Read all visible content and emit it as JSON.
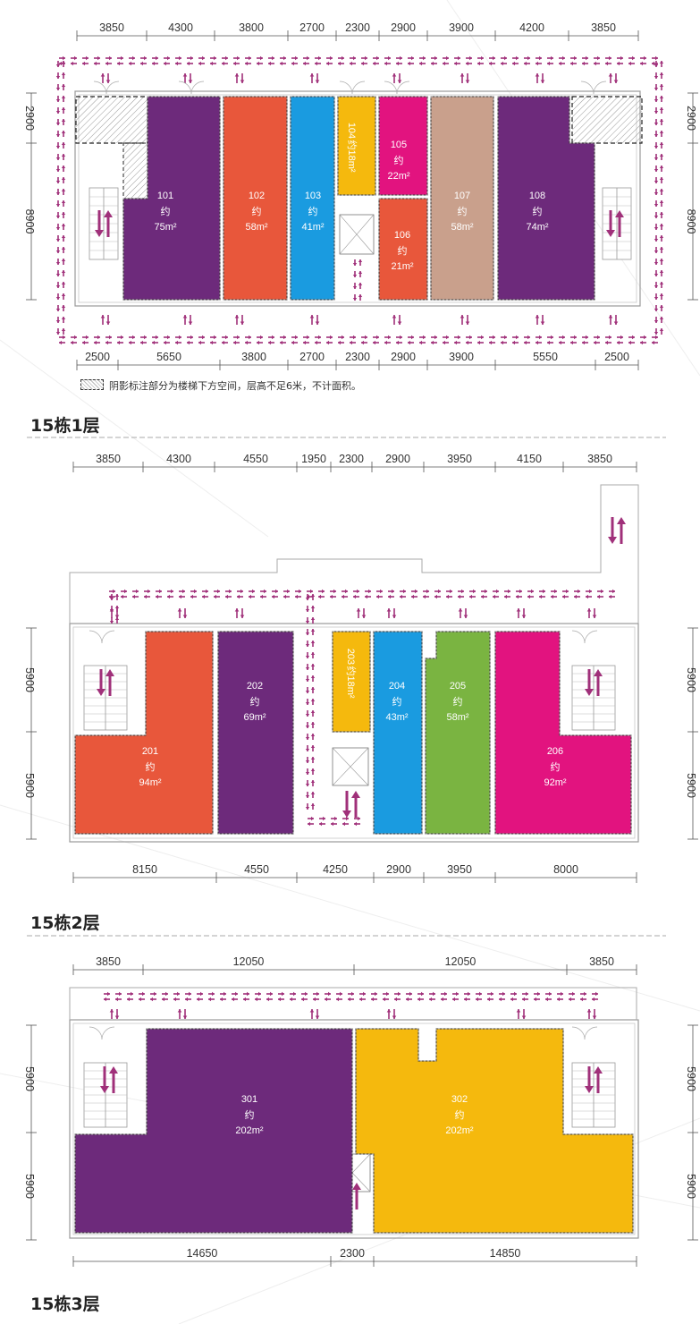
{
  "note": {
    "text": "阴影标注部分为楼梯下方空间，层高不足6米，不计面积。"
  },
  "colors": {
    "purple": "#6d2a7b",
    "orange": "#e8573b",
    "blue": "#1a9be0",
    "yellow": "#f5b90d",
    "magenta": "#e2137f",
    "tan": "#c9a08c",
    "green": "#7ab441",
    "arrow": "#a0307a"
  },
  "floors": [
    {
      "title": "15栋1层",
      "dims_top": [
        "3850",
        "4300",
        "3800",
        "2700",
        "2300",
        "2900",
        "3900",
        "4200",
        "3850"
      ],
      "dims_bottom": [
        "2500",
        "5650",
        "3800",
        "2700",
        "2300",
        "2900",
        "3900",
        "5550",
        "2500"
      ],
      "dims_left": [
        "2900",
        "8900"
      ],
      "dims_right": [
        "2900",
        "8900"
      ],
      "units": [
        {
          "id": "101",
          "label": "约",
          "area": "75m²",
          "color": "purple"
        },
        {
          "id": "102",
          "label": "约",
          "area": "58m²",
          "color": "orange"
        },
        {
          "id": "103",
          "label": "约",
          "area": "41m²",
          "color": "blue"
        },
        {
          "id": "104",
          "label": "约",
          "area": "18m²",
          "color": "yellow"
        },
        {
          "id": "105",
          "label": "约",
          "area": "22m²",
          "color": "magenta"
        },
        {
          "id": "106",
          "label": "约",
          "area": "21m²",
          "color": "orange"
        },
        {
          "id": "107",
          "label": "约",
          "area": "58m²",
          "color": "tan"
        },
        {
          "id": "108",
          "label": "约",
          "area": "74m²",
          "color": "purple"
        }
      ]
    },
    {
      "title": "15栋2层",
      "dims_top": [
        "3850",
        "4300",
        "4550",
        "1950",
        "2300",
        "2900",
        "3950",
        "4150",
        "3850"
      ],
      "dims_bottom": [
        "8150",
        "4550",
        "4250",
        "2900",
        "3950",
        "8000"
      ],
      "dims_left": [
        "5900",
        "5900"
      ],
      "dims_right": [
        "5900",
        "5900"
      ],
      "units": [
        {
          "id": "201",
          "label": "约",
          "area": "94m²",
          "color": "orange"
        },
        {
          "id": "202",
          "label": "约",
          "area": "69m²",
          "color": "purple"
        },
        {
          "id": "203",
          "label": "约",
          "area": "18m²",
          "color": "yellow"
        },
        {
          "id": "204",
          "label": "约",
          "area": "43m²",
          "color": "blue"
        },
        {
          "id": "205",
          "label": "约",
          "area": "58m²",
          "color": "green"
        },
        {
          "id": "206",
          "label": "约",
          "area": "92m²",
          "color": "magenta"
        }
      ]
    },
    {
      "title": "15栋3层",
      "dims_top": [
        "3850",
        "12050",
        "12050",
        "3850"
      ],
      "dims_bottom": [
        "14650",
        "2300",
        "14850"
      ],
      "dims_left": [
        "5900",
        "5900"
      ],
      "dims_right": [
        "5900",
        "5900"
      ],
      "units": [
        {
          "id": "301",
          "label": "约",
          "area": "202m²",
          "color": "purple"
        },
        {
          "id": "302",
          "label": "约",
          "area": "202m²",
          "color": "yellow"
        }
      ]
    }
  ]
}
